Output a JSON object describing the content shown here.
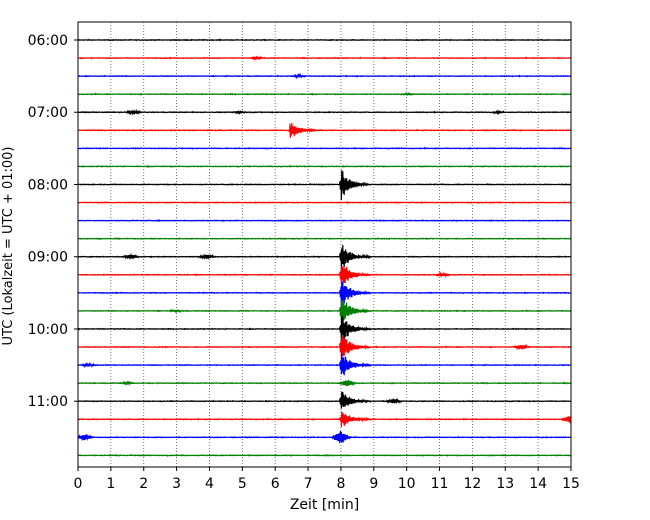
{
  "chart_data": {
    "type": "line",
    "title": "",
    "xlabel": "Zeit  [min]",
    "ylabel": "UTC (Lokalzeit = UTC + 01:00)",
    "xlim": [
      0,
      15
    ],
    "x_ticks": [
      0,
      1,
      2,
      3,
      4,
      5,
      6,
      7,
      8,
      9,
      10,
      11,
      12,
      13,
      14,
      15
    ],
    "x_tick_labels": [
      "0",
      "1",
      "2",
      "3",
      "4",
      "5",
      "6",
      "7",
      "8",
      "9",
      "10",
      "11",
      "12",
      "13",
      "14",
      "15"
    ],
    "y_tick_labels": [
      "06:00",
      "07:00",
      "08:00",
      "09:00",
      "10:00",
      "11:00"
    ],
    "trace_start_times": [
      "06:00",
      "06:15",
      "06:30",
      "06:45",
      "07:00",
      "07:15",
      "07:30",
      "07:45",
      "08:00",
      "08:15",
      "08:30",
      "08:45",
      "09:00",
      "09:15",
      "09:30",
      "09:45",
      "10:00",
      "10:15",
      "10:30",
      "10:45",
      "11:00",
      "11:15",
      "11:30",
      "11:45"
    ],
    "trace_colors": [
      "#000000",
      "#ff0000",
      "#0000ff",
      "#008000"
    ],
    "grid": "vertical dotted",
    "events": [
      {
        "trace": 1,
        "t": 5.4,
        "amp": 0.12
      },
      {
        "trace": 2,
        "t": 6.7,
        "amp": 0.14
      },
      {
        "trace": 3,
        "t": 10.0,
        "amp": 0.08
      },
      {
        "trace": 4,
        "t": 1.7,
        "amp": 0.22
      },
      {
        "trace": 4,
        "t": 4.9,
        "amp": 0.12
      },
      {
        "trace": 4,
        "t": 12.8,
        "amp": 0.1
      },
      {
        "trace": 5,
        "t": 6.45,
        "amp": 1.2
      },
      {
        "trace": 8,
        "t": 8.0,
        "amp": 2.0
      },
      {
        "trace": 12,
        "t": 1.6,
        "amp": 0.28
      },
      {
        "trace": 12,
        "t": 3.9,
        "amp": 0.28
      },
      {
        "trace": 12,
        "t": 8.0,
        "amp": 1.8
      },
      {
        "trace": 13,
        "t": 8.0,
        "amp": 1.9
      },
      {
        "trace": 13,
        "t": 11.1,
        "amp": 0.2
      },
      {
        "trace": 14,
        "t": 8.0,
        "amp": 2.0
      },
      {
        "trace": 15,
        "t": 8.0,
        "amp": 2.0
      },
      {
        "trace": 15,
        "t": 3.0,
        "amp": 0.1
      },
      {
        "trace": 16,
        "t": 8.0,
        "amp": 2.0
      },
      {
        "trace": 17,
        "t": 8.0,
        "amp": 2.0
      },
      {
        "trace": 17,
        "t": 13.5,
        "amp": 0.25
      },
      {
        "trace": 18,
        "t": 8.0,
        "amp": 1.8
      },
      {
        "trace": 18,
        "t": 0.3,
        "amp": 0.15
      },
      {
        "trace": 19,
        "t": 8.2,
        "amp": 0.4
      },
      {
        "trace": 19,
        "t": 1.5,
        "amp": 0.12
      },
      {
        "trace": 20,
        "t": 8.0,
        "amp": 1.5
      },
      {
        "trace": 20,
        "t": 9.6,
        "amp": 0.25
      },
      {
        "trace": 21,
        "t": 8.0,
        "amp": 1.2
      },
      {
        "trace": 21,
        "t": 15.0,
        "amp": 0.5
      },
      {
        "trace": 22,
        "t": 0.2,
        "amp": 0.35
      },
      {
        "trace": 22,
        "t": 8.0,
        "amp": 0.8
      }
    ]
  }
}
